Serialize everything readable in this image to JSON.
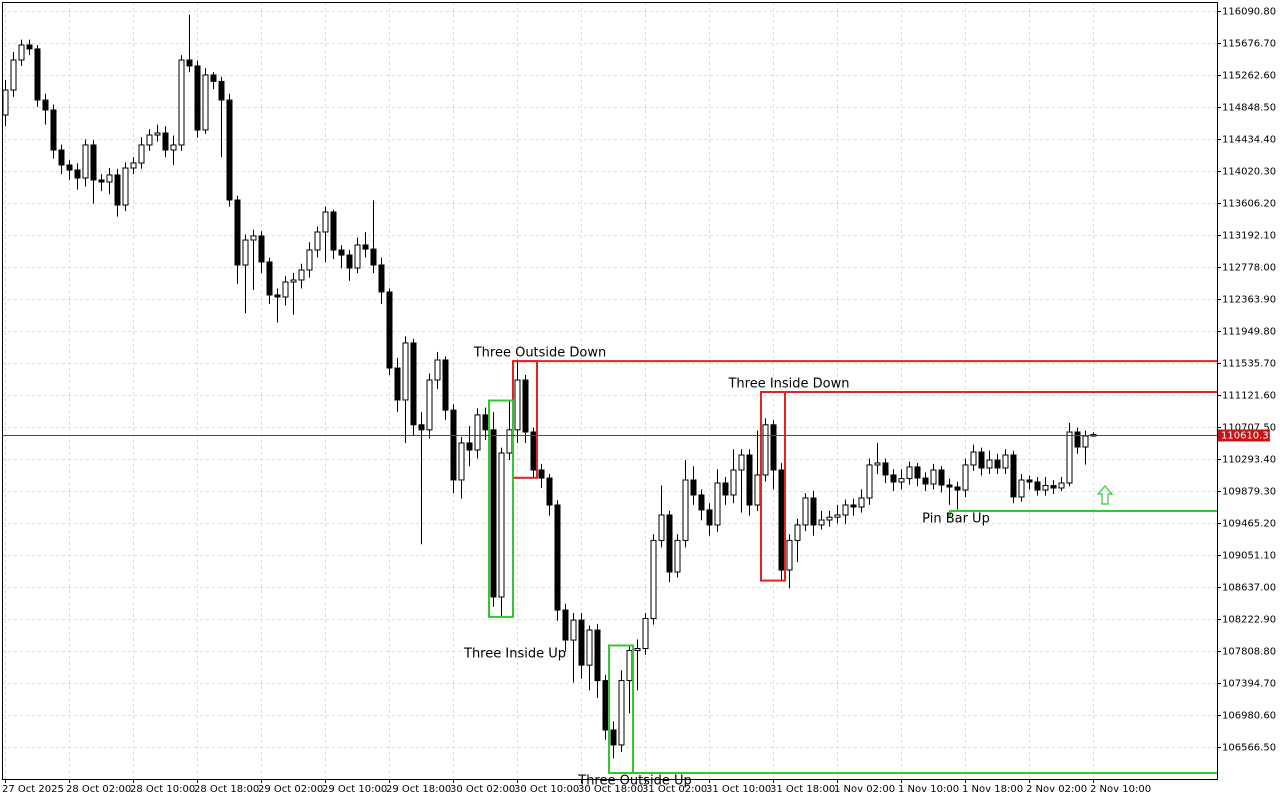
{
  "chart_data": {
    "type": "candlestick",
    "categories": [
      "27 Oct 2025",
      null,
      null,
      null,
      null,
      null,
      null,
      null,
      "28 Oct 02:00",
      null,
      null,
      null,
      null,
      null,
      null,
      null,
      "28 Oct 10:00",
      null,
      null,
      null,
      null,
      null,
      null,
      null,
      "28 Oct 18:00",
      null,
      null,
      null,
      null,
      null,
      null,
      null,
      "29 Oct 02:00",
      null,
      null,
      null,
      null,
      null,
      null,
      null,
      "29 Oct 10:00",
      null,
      null,
      null,
      null,
      null,
      null,
      null,
      "29 Oct 18:00",
      null,
      null,
      null,
      null,
      null,
      null,
      null,
      "30 Oct 02:00",
      null,
      null,
      null,
      null,
      null,
      null,
      null,
      "30 Oct 10:00",
      null,
      null,
      null,
      null,
      null,
      null,
      null,
      "30 Oct 18:00",
      null,
      null,
      null,
      null,
      null,
      null,
      null,
      "31 Oct 02:00",
      null,
      null,
      null,
      null,
      null,
      null,
      null,
      "31 Oct 10:00",
      null,
      null,
      null,
      null,
      null,
      null,
      null,
      "31 Oct 18:00",
      null,
      null,
      null,
      null,
      null,
      null,
      null,
      "1 Nov 02:00",
      null,
      null,
      null,
      null,
      null,
      null,
      null,
      "1 Nov 10:00",
      null,
      null,
      null,
      null,
      null,
      null,
      null,
      "1 Nov 18:00",
      null,
      null,
      null,
      null,
      null,
      null,
      null,
      "2 Nov 02:00",
      null,
      null,
      null,
      null,
      null,
      null,
      null,
      "2 Nov 10:00"
    ],
    "open": [
      114745,
      115068,
      115457,
      115651,
      115600,
      114939,
      114810,
      114292,
      114098,
      114033,
      113930,
      114357,
      113904,
      113878,
      113969,
      113580,
      114059,
      114124,
      114357,
      114486,
      114512,
      114292,
      114357,
      115457,
      115380,
      114551,
      115263,
      115180,
      114939,
      113645,
      112804,
      113127,
      113180,
      112843,
      112416,
      112390,
      112584,
      112610,
      112739,
      112998,
      113231,
      113490,
      112998,
      112933,
      112765,
      113063,
      113010,
      112804,
      112455,
      111471,
      111057,
      111795,
      110736,
      110671,
      111316,
      111575,
      110926,
      110022,
      110501,
      110410,
      110864,
      110671,
      108508,
      110371,
      110671,
      111316,
      110643,
      110151,
      110047,
      109698,
      108339,
      107950,
      108209,
      107626,
      108080,
      107426,
      106787,
      106593,
      107426,
      107815,
      107841,
      108229,
      109240,
      109569,
      108831,
      109240,
      110022,
      109828,
      109634,
      109440,
      109983,
      109828,
      110151,
      110345,
      109698,
      110087,
      110736,
      110151,
      108857,
      109240,
      109440,
      109789,
      109440,
      109504,
      109540,
      109569,
      109698,
      109672,
      109789,
      110216,
      110242,
      110087,
      109996,
      110040,
      110191,
      110047,
      109970,
      110151,
      109957,
      109931,
      109892,
      110216,
      110384,
      110177,
      110280,
      110177,
      110345,
      109802,
      110022,
      109996,
      109892,
      109950,
      109918,
      109983,
      110643,
      110449,
      110591
    ],
    "high": [
      115200,
      115560,
      115720,
      115720,
      115650,
      115020,
      114880,
      114360,
      114160,
      114120,
      114430,
      114420,
      113980,
      114060,
      114050,
      114130,
      114200,
      114460,
      114560,
      114620,
      114600,
      114480,
      115520,
      116040,
      115450,
      115350,
      115300,
      115240,
      115020,
      113700,
      113200,
      113260,
      113240,
      112900,
      112500,
      112660,
      112700,
      112820,
      113100,
      113300,
      113560,
      113520,
      113060,
      113000,
      113160,
      113230,
      113640,
      112900,
      112500,
      111600,
      111880,
      111850,
      110900,
      111400,
      111680,
      111620,
      111000,
      110580,
      110720,
      110950,
      110960,
      110900,
      110440,
      111050,
      111580,
      111380,
      110700,
      110230,
      110100,
      109760,
      108420,
      108300,
      108300,
      108140,
      108160,
      107500,
      106900,
      107560,
      107880,
      107960,
      108300,
      109320,
      109950,
      109620,
      109320,
      110280,
      110200,
      109900,
      109720,
      110160,
      110060,
      110420,
      110420,
      110420,
      110660,
      110820,
      110800,
      110240,
      109320,
      109520,
      109850,
      109880,
      109620,
      109620,
      109700,
      109770,
      109780,
      109900,
      110300,
      110500,
      110300,
      110160,
      110160,
      110260,
      110240,
      110120,
      110230,
      110200,
      110040,
      110000,
      110300,
      110480,
      110440,
      110400,
      110360,
      110420,
      110400,
      110100,
      110080,
      110060,
      110060,
      110020,
      110060,
      110760,
      110700,
      110660,
      110640
    ],
    "low": [
      114600,
      114980,
      115380,
      115520,
      114850,
      114620,
      114180,
      113980,
      113900,
      113780,
      113820,
      113600,
      113760,
      113720,
      113430,
      113500,
      113980,
      114050,
      114280,
      114400,
      114200,
      114100,
      114280,
      115300,
      114450,
      114500,
      115080,
      114200,
      113560,
      112560,
      112180,
      112480,
      112700,
      112300,
      112060,
      112280,
      112160,
      112500,
      112640,
      112900,
      112840,
      112880,
      112760,
      112600,
      112700,
      112900,
      112700,
      112300,
      111380,
      110900,
      110500,
      110600,
      109190,
      110560,
      111200,
      110800,
      109850,
      109780,
      110200,
      110300,
      110540,
      108380,
      108250,
      110280,
      110500,
      110500,
      110050,
      109920,
      109560,
      108200,
      107800,
      107400,
      107450,
      107300,
      107200,
      106660,
      106420,
      106500,
      107000,
      107300,
      107760,
      108150,
      109150,
      108700,
      108760,
      109150,
      109700,
      109500,
      109300,
      109350,
      109700,
      109720,
      109600,
      109560,
      109620,
      110000,
      109900,
      108720,
      108620,
      108960,
      109360,
      109300,
      109380,
      109420,
      109460,
      109450,
      109560,
      109600,
      109700,
      110100,
      109980,
      109880,
      109900,
      109960,
      109940,
      109880,
      109900,
      109860,
      109700,
      109640,
      109800,
      110140,
      110080,
      110100,
      110100,
      110100,
      109720,
      109740,
      109900,
      109820,
      109820,
      109840,
      109880,
      109940,
      110360,
      110220,
      110580
    ],
    "close": [
      115068,
      115457,
      115651,
      115600,
      114939,
      114810,
      114292,
      114098,
      114033,
      113930,
      114357,
      113904,
      113878,
      113969,
      113580,
      114059,
      114124,
      114357,
      114486,
      114512,
      114292,
      114357,
      115457,
      115380,
      114551,
      115263,
      115180,
      114939,
      113645,
      112804,
      113127,
      113180,
      112843,
      112416,
      112390,
      112584,
      112610,
      112739,
      112998,
      113231,
      113490,
      112998,
      112933,
      112765,
      113063,
      113010,
      112804,
      112455,
      111471,
      111057,
      111795,
      110736,
      110671,
      111316,
      111575,
      110926,
      110022,
      110501,
      110410,
      110864,
      110671,
      108508,
      110371,
      110671,
      111316,
      110643,
      110151,
      110047,
      109698,
      108339,
      107950,
      108209,
      107626,
      108080,
      107426,
      106787,
      106593,
      107426,
      107815,
      107841,
      108229,
      109240,
      109569,
      108831,
      109240,
      110022,
      109828,
      109634,
      109440,
      109983,
      109828,
      110151,
      110345,
      109698,
      110087,
      110736,
      110151,
      108857,
      109240,
      109440,
      109789,
      109440,
      109504,
      109540,
      109569,
      109698,
      109672,
      109789,
      110216,
      110242,
      110087,
      109996,
      110040,
      110191,
      110047,
      109970,
      110151,
      109957,
      109931,
      109892,
      110216,
      110384,
      110177,
      110280,
      110177,
      110345,
      109802,
      110022,
      109996,
      109892,
      109950,
      109918,
      109983,
      110643,
      110449,
      110591,
      110610.35
    ],
    "up_color": "#ffffff",
    "down_color": "#000000",
    "line_color": "#000000",
    "price_line_color": "#c81414",
    "ylim": [
      106152.4,
      116207.3
    ],
    "yticks": [
      {
        "value": 116090.8,
        "label": "116090.80"
      },
      {
        "value": 115676.7,
        "label": "115676.70"
      },
      {
        "value": 115262.6,
        "label": "115262.60"
      },
      {
        "value": 114848.5,
        "label": "114848.50"
      },
      {
        "value": 114434.4,
        "label": "114434.40"
      },
      {
        "value": 114020.3,
        "label": "114020.30"
      },
      {
        "value": 113606.2,
        "label": "113606.20"
      },
      {
        "value": 113192.1,
        "label": "113192.10"
      },
      {
        "value": 112778,
        "label": "112778.00"
      },
      {
        "value": 112363.9,
        "label": "112363.90"
      },
      {
        "value": 111949.8,
        "label": "111949.80"
      },
      {
        "value": 111535.7,
        "label": "111535.70"
      },
      {
        "value": 111121.6,
        "label": "111121.60"
      },
      {
        "value": 110707.5,
        "label": "110707.50"
      },
      {
        "value": 110293.4,
        "label": "110293.40"
      },
      {
        "value": 109879.3,
        "label": "109879.30"
      },
      {
        "value": 109465.2,
        "label": "109465.20"
      },
      {
        "value": 109051.1,
        "label": "109051.10"
      },
      {
        "value": 108637,
        "label": "108637.00"
      },
      {
        "value": 108222.9,
        "label": "108222.90"
      },
      {
        "value": 107808.8,
        "label": "107808.80"
      },
      {
        "value": 107394.7,
        "label": "107394.70"
      },
      {
        "value": 106980.6,
        "label": "106980.60"
      },
      {
        "value": 106566.5,
        "label": "106566.50"
      }
    ],
    "grid": true,
    "annotations": [
      {
        "text": "Three Outside Down",
        "level": 111560,
        "color": "#e02424"
      },
      {
        "text": "Three Inside Down",
        "level": 111160,
        "color": "#e02424"
      },
      {
        "text": "Three Inside Up",
        "color": "#32c832"
      },
      {
        "text": "Pin Bar Up",
        "level": 109620,
        "color": "#32c832"
      },
      {
        "text": "Three Outside Up",
        "level": 106230,
        "color": "#32c832"
      }
    ]
  }
}
